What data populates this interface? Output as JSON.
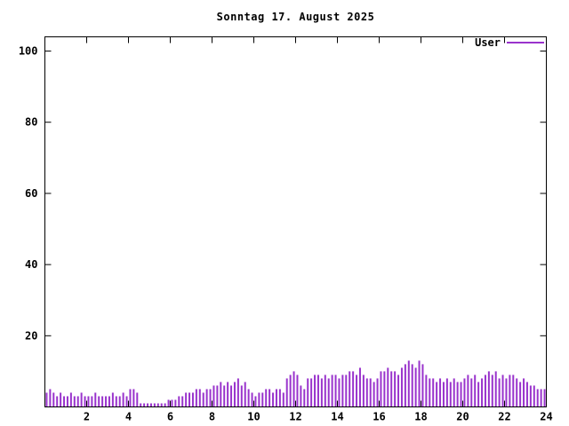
{
  "title": "Sonntag 17. August 2025",
  "legend": {
    "label": "User"
  },
  "colors": {
    "series": "#9933cc",
    "axis": "#000000",
    "background": "#ffffff",
    "text": "#000000"
  },
  "chart_data": {
    "type": "bar",
    "style": "impulses",
    "title": "Sonntag 17. August 2025",
    "xlabel": "",
    "ylabel": "",
    "xlim": [
      0,
      24
    ],
    "ylim": [
      0,
      104
    ],
    "xticks": [
      2,
      4,
      6,
      8,
      10,
      12,
      14,
      16,
      18,
      20,
      22,
      24
    ],
    "yticks": [
      20,
      40,
      60,
      80,
      100
    ],
    "grid": false,
    "legend_position": "top-right",
    "x_unit": "hour-of-day",
    "sample_interval_minutes": 10,
    "series": [
      {
        "name": "User",
        "color": "#9933cc",
        "values": [
          4,
          5,
          4,
          3,
          4,
          3,
          3,
          4,
          3,
          3,
          4,
          3,
          3,
          3,
          4,
          3,
          3,
          3,
          3,
          4,
          3,
          3,
          4,
          3,
          5,
          5,
          4,
          1,
          1,
          1,
          1,
          1,
          1,
          1,
          1,
          2,
          2,
          2,
          3,
          3,
          4,
          4,
          4,
          5,
          5,
          4,
          5,
          5,
          6,
          6,
          7,
          6,
          7,
          6,
          7,
          8,
          6,
          7,
          5,
          4,
          3,
          4,
          4,
          5,
          5,
          4,
          5,
          5,
          4,
          8,
          9,
          10,
          9,
          6,
          5,
          8,
          8,
          9,
          9,
          8,
          9,
          8,
          9,
          9,
          8,
          9,
          9,
          10,
          10,
          9,
          11,
          9,
          8,
          8,
          7,
          8,
          10,
          10,
          11,
          10,
          10,
          9,
          11,
          12,
          13,
          12,
          11,
          13,
          12,
          9,
          8,
          8,
          7,
          8,
          7,
          8,
          7,
          8,
          7,
          7,
          8,
          9,
          8,
          9,
          7,
          8,
          9,
          10,
          9,
          10,
          8,
          9,
          8,
          9,
          9,
          8,
          7,
          8,
          7,
          6,
          6,
          5,
          5,
          5
        ]
      }
    ]
  }
}
